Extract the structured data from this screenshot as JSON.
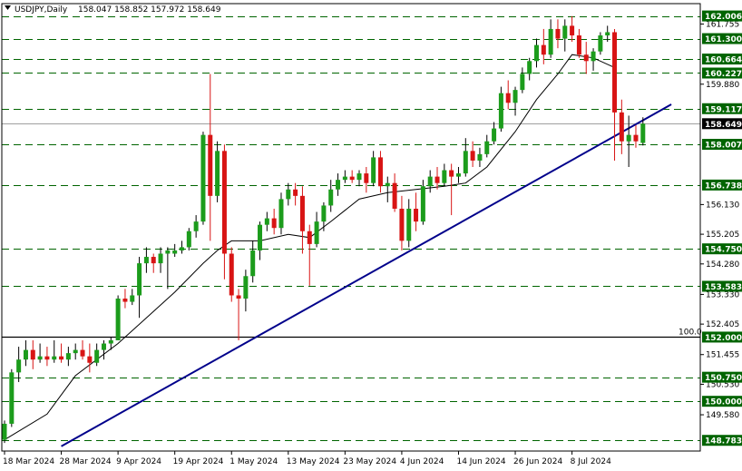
{
  "header": {
    "symbol": "USDJPY,Daily",
    "ohlc": "158.047 158.852 157.972 158.649"
  },
  "colors": {
    "background": "#ffffff",
    "bull": "#1c9c1c",
    "bear": "#d81414",
    "wick": "#000000",
    "level_line": "#006400",
    "trendline": "#00008b",
    "ma_line": "#000000",
    "level_label_bg": "#006400",
    "price_label_bg": "#000000"
  },
  "chart_data": {
    "type": "candlestick",
    "title": "",
    "ylim": [
      148.45,
      162.39
    ],
    "x_labels": [
      {
        "label": "18 Mar 2024",
        "index": 0
      },
      {
        "label": "28 Mar 2024",
        "index": 8
      },
      {
        "label": "9 Apr 2024",
        "index": 16
      },
      {
        "label": "19 Apr 2024",
        "index": 24
      },
      {
        "label": "1 May 2024",
        "index": 32
      },
      {
        "label": "13 May 2024",
        "index": 40
      },
      {
        "label": "23 May 2024",
        "index": 48
      },
      {
        "label": "4 Jun 2024",
        "index": 56
      },
      {
        "label": "14 Jun 2024",
        "index": 64
      },
      {
        "label": "26 Jun 2024",
        "index": 72
      },
      {
        "label": "8 Jul 2024",
        "index": 80
      }
    ],
    "y_ticks": [
      "161.755",
      "159.880",
      "156.130",
      "155.205",
      "154.280",
      "153.330",
      "152.405",
      "151.455",
      "150.530",
      "149.580"
    ],
    "horizontal_levels": [
      {
        "value": 162.006,
        "label": "162.006"
      },
      {
        "value": 161.3,
        "label": "161.300"
      },
      {
        "value": 160.664,
        "label": "160.664"
      },
      {
        "value": 160.227,
        "label": "160.227"
      },
      {
        "value": 159.117,
        "label": "159.117"
      },
      {
        "value": 158.007,
        "label": "158.007"
      },
      {
        "value": 156.738,
        "label": "156.738"
      },
      {
        "value": 154.75,
        "label": "154.750"
      },
      {
        "value": 153.583,
        "label": "153.583"
      },
      {
        "value": 152.0,
        "label": "152.000",
        "note": "100.0"
      },
      {
        "value": 150.75,
        "label": "150.750"
      },
      {
        "value": 150.0,
        "label": "150.000"
      },
      {
        "value": 148.783,
        "label": "148.783"
      }
    ],
    "current_price": {
      "value": 158.649,
      "label": "158.649"
    },
    "trendline": {
      "from": {
        "index": 8,
        "value": 148.6
      },
      "to": {
        "index": 94,
        "value": 159.25
      }
    },
    "ma": [
      {
        "index": 0,
        "value": 148.8
      },
      {
        "index": 6,
        "value": 149.6
      },
      {
        "index": 10,
        "value": 150.8
      },
      {
        "index": 16,
        "value": 151.8
      },
      {
        "index": 20,
        "value": 152.6
      },
      {
        "index": 24,
        "value": 153.4
      },
      {
        "index": 28,
        "value": 154.3
      },
      {
        "index": 30,
        "value": 154.7
      },
      {
        "index": 32,
        "value": 155.0
      },
      {
        "index": 36,
        "value": 155.0
      },
      {
        "index": 40,
        "value": 155.2
      },
      {
        "index": 43,
        "value": 155.1
      },
      {
        "index": 46,
        "value": 155.6
      },
      {
        "index": 50,
        "value": 156.3
      },
      {
        "index": 54,
        "value": 156.5
      },
      {
        "index": 58,
        "value": 156.6
      },
      {
        "index": 62,
        "value": 156.7
      },
      {
        "index": 65,
        "value": 156.8
      },
      {
        "index": 68,
        "value": 157.3
      },
      {
        "index": 72,
        "value": 158.4
      },
      {
        "index": 75,
        "value": 159.4
      },
      {
        "index": 78,
        "value": 160.2
      },
      {
        "index": 80,
        "value": 160.8
      },
      {
        "index": 83,
        "value": 160.7
      },
      {
        "index": 86,
        "value": 160.4
      }
    ],
    "candles": [
      {
        "o": 148.8,
        "h": 149.4,
        "l": 148.7,
        "c": 149.3
      },
      {
        "o": 149.3,
        "h": 151.0,
        "l": 149.2,
        "c": 150.9
      },
      {
        "o": 150.9,
        "h": 151.7,
        "l": 150.6,
        "c": 151.3
      },
      {
        "o": 151.3,
        "h": 151.9,
        "l": 151.1,
        "c": 151.6
      },
      {
        "o": 151.6,
        "h": 151.9,
        "l": 151.0,
        "c": 151.3
      },
      {
        "o": 151.3,
        "h": 151.8,
        "l": 151.2,
        "c": 151.4
      },
      {
        "o": 151.4,
        "h": 151.7,
        "l": 151.1,
        "c": 151.3
      },
      {
        "o": 151.3,
        "h": 151.9,
        "l": 151.2,
        "c": 151.4
      },
      {
        "o": 151.4,
        "h": 151.8,
        "l": 151.2,
        "c": 151.3
      },
      {
        "o": 151.3,
        "h": 151.7,
        "l": 151.1,
        "c": 151.5
      },
      {
        "o": 151.5,
        "h": 151.8,
        "l": 151.3,
        "c": 151.6
      },
      {
        "o": 151.6,
        "h": 151.9,
        "l": 151.3,
        "c": 151.4
      },
      {
        "o": 151.4,
        "h": 151.8,
        "l": 150.9,
        "c": 151.2
      },
      {
        "o": 151.2,
        "h": 151.8,
        "l": 151.1,
        "c": 151.6
      },
      {
        "o": 151.6,
        "h": 151.9,
        "l": 151.3,
        "c": 151.8
      },
      {
        "o": 151.8,
        "h": 152.0,
        "l": 151.6,
        "c": 151.9
      },
      {
        "o": 151.9,
        "h": 153.3,
        "l": 151.9,
        "c": 153.2
      },
      {
        "o": 153.2,
        "h": 153.5,
        "l": 152.9,
        "c": 153.1
      },
      {
        "o": 153.1,
        "h": 153.5,
        "l": 153.0,
        "c": 153.3
      },
      {
        "o": 153.3,
        "h": 154.5,
        "l": 152.6,
        "c": 154.3
      },
      {
        "o": 154.3,
        "h": 154.8,
        "l": 154.0,
        "c": 154.5
      },
      {
        "o": 154.5,
        "h": 154.6,
        "l": 154.0,
        "c": 154.3
      },
      {
        "o": 154.3,
        "h": 154.8,
        "l": 154.0,
        "c": 154.6
      },
      {
        "o": 154.6,
        "h": 154.8,
        "l": 153.5,
        "c": 154.7
      },
      {
        "o": 154.6,
        "h": 154.9,
        "l": 154.5,
        "c": 154.7
      },
      {
        "o": 154.7,
        "h": 155.0,
        "l": 154.6,
        "c": 154.8
      },
      {
        "o": 154.8,
        "h": 155.4,
        "l": 154.7,
        "c": 155.3
      },
      {
        "o": 155.3,
        "h": 155.8,
        "l": 155.1,
        "c": 155.6
      },
      {
        "o": 155.6,
        "h": 158.4,
        "l": 155.5,
        "c": 158.3
      },
      {
        "o": 158.3,
        "h": 160.2,
        "l": 155.0,
        "c": 156.4
      },
      {
        "o": 156.4,
        "h": 158.1,
        "l": 156.2,
        "c": 157.8
      },
      {
        "o": 157.8,
        "h": 158.0,
        "l": 153.8,
        "c": 154.6
      },
      {
        "o": 154.6,
        "h": 154.8,
        "l": 153.1,
        "c": 153.3
      },
      {
        "o": 153.3,
        "h": 153.5,
        "l": 151.9,
        "c": 153.2
      },
      {
        "o": 153.2,
        "h": 154.1,
        "l": 152.8,
        "c": 153.9
      },
      {
        "o": 153.9,
        "h": 155.0,
        "l": 153.7,
        "c": 154.7
      },
      {
        "o": 154.7,
        "h": 155.6,
        "l": 154.4,
        "c": 155.5
      },
      {
        "o": 155.5,
        "h": 155.9,
        "l": 155.3,
        "c": 155.7
      },
      {
        "o": 155.7,
        "h": 156.0,
        "l": 155.2,
        "c": 155.4
      },
      {
        "o": 155.4,
        "h": 156.5,
        "l": 155.2,
        "c": 156.3
      },
      {
        "o": 156.3,
        "h": 156.8,
        "l": 156.1,
        "c": 156.6
      },
      {
        "o": 156.6,
        "h": 156.8,
        "l": 156.1,
        "c": 156.4
      },
      {
        "o": 156.4,
        "h": 156.7,
        "l": 154.6,
        "c": 155.3
      },
      {
        "o": 155.3,
        "h": 155.5,
        "l": 153.6,
        "c": 154.9
      },
      {
        "o": 154.9,
        "h": 155.9,
        "l": 154.8,
        "c": 155.6
      },
      {
        "o": 155.6,
        "h": 156.2,
        "l": 155.3,
        "c": 156.1
      },
      {
        "o": 156.1,
        "h": 156.9,
        "l": 155.9,
        "c": 156.6
      },
      {
        "o": 156.6,
        "h": 157.1,
        "l": 156.4,
        "c": 156.9
      },
      {
        "o": 156.9,
        "h": 157.2,
        "l": 156.8,
        "c": 157.0
      },
      {
        "o": 157.0,
        "h": 157.2,
        "l": 156.8,
        "c": 156.9
      },
      {
        "o": 156.9,
        "h": 157.2,
        "l": 156.7,
        "c": 157.1
      },
      {
        "o": 157.1,
        "h": 157.3,
        "l": 156.5,
        "c": 156.8
      },
      {
        "o": 156.8,
        "h": 157.8,
        "l": 156.7,
        "c": 157.6
      },
      {
        "o": 157.6,
        "h": 157.8,
        "l": 156.5,
        "c": 156.7
      },
      {
        "o": 156.7,
        "h": 157.0,
        "l": 156.2,
        "c": 156.8
      },
      {
        "o": 156.8,
        "h": 157.1,
        "l": 155.9,
        "c": 156.0
      },
      {
        "o": 156.0,
        "h": 156.4,
        "l": 154.7,
        "c": 155.0
      },
      {
        "o": 155.0,
        "h": 156.3,
        "l": 154.8,
        "c": 156.0
      },
      {
        "o": 156.0,
        "h": 156.5,
        "l": 155.3,
        "c": 155.6
      },
      {
        "o": 155.6,
        "h": 156.9,
        "l": 155.5,
        "c": 156.7
      },
      {
        "o": 156.7,
        "h": 157.2,
        "l": 156.5,
        "c": 157.0
      },
      {
        "o": 157.0,
        "h": 157.3,
        "l": 156.6,
        "c": 156.8
      },
      {
        "o": 156.8,
        "h": 157.4,
        "l": 156.7,
        "c": 157.2
      },
      {
        "o": 157.2,
        "h": 157.4,
        "l": 155.8,
        "c": 157.0
      },
      {
        "o": 157.0,
        "h": 157.3,
        "l": 156.8,
        "c": 157.1
      },
      {
        "o": 157.1,
        "h": 158.2,
        "l": 157.0,
        "c": 157.8
      },
      {
        "o": 157.8,
        "h": 158.1,
        "l": 157.3,
        "c": 157.5
      },
      {
        "o": 157.5,
        "h": 157.9,
        "l": 157.3,
        "c": 157.7
      },
      {
        "o": 157.7,
        "h": 158.3,
        "l": 157.6,
        "c": 158.1
      },
      {
        "o": 158.1,
        "h": 158.7,
        "l": 158.0,
        "c": 158.5
      },
      {
        "o": 158.5,
        "h": 159.8,
        "l": 158.4,
        "c": 159.6
      },
      {
        "o": 159.6,
        "h": 160.0,
        "l": 159.1,
        "c": 159.3
      },
      {
        "o": 159.3,
        "h": 159.8,
        "l": 158.9,
        "c": 159.7
      },
      {
        "o": 159.7,
        "h": 160.4,
        "l": 159.6,
        "c": 160.2
      },
      {
        "o": 160.2,
        "h": 160.7,
        "l": 160.0,
        "c": 160.6
      },
      {
        "o": 160.6,
        "h": 161.3,
        "l": 160.4,
        "c": 161.1
      },
      {
        "o": 161.1,
        "h": 161.6,
        "l": 160.5,
        "c": 160.8
      },
      {
        "o": 160.8,
        "h": 161.9,
        "l": 160.7,
        "c": 161.6
      },
      {
        "o": 161.6,
        "h": 161.9,
        "l": 161.0,
        "c": 161.3
      },
      {
        "o": 161.3,
        "h": 161.9,
        "l": 160.9,
        "c": 161.7
      },
      {
        "o": 161.7,
        "h": 162.0,
        "l": 161.2,
        "c": 161.4
      },
      {
        "o": 161.4,
        "h": 161.6,
        "l": 160.7,
        "c": 160.8
      },
      {
        "o": 160.8,
        "h": 161.2,
        "l": 160.2,
        "c": 160.6
      },
      {
        "o": 160.6,
        "h": 161.0,
        "l": 160.3,
        "c": 160.9
      },
      {
        "o": 160.9,
        "h": 161.5,
        "l": 160.8,
        "c": 161.4
      },
      {
        "o": 161.4,
        "h": 161.7,
        "l": 161.2,
        "c": 161.5
      },
      {
        "o": 161.5,
        "h": 161.6,
        "l": 157.5,
        "c": 159.0
      },
      {
        "o": 159.0,
        "h": 159.4,
        "l": 157.7,
        "c": 158.1
      },
      {
        "o": 158.1,
        "h": 158.9,
        "l": 157.3,
        "c": 158.3
      },
      {
        "o": 158.3,
        "h": 158.6,
        "l": 157.9,
        "c": 158.1
      },
      {
        "o": 158.05,
        "h": 158.85,
        "l": 157.97,
        "c": 158.65
      }
    ]
  }
}
